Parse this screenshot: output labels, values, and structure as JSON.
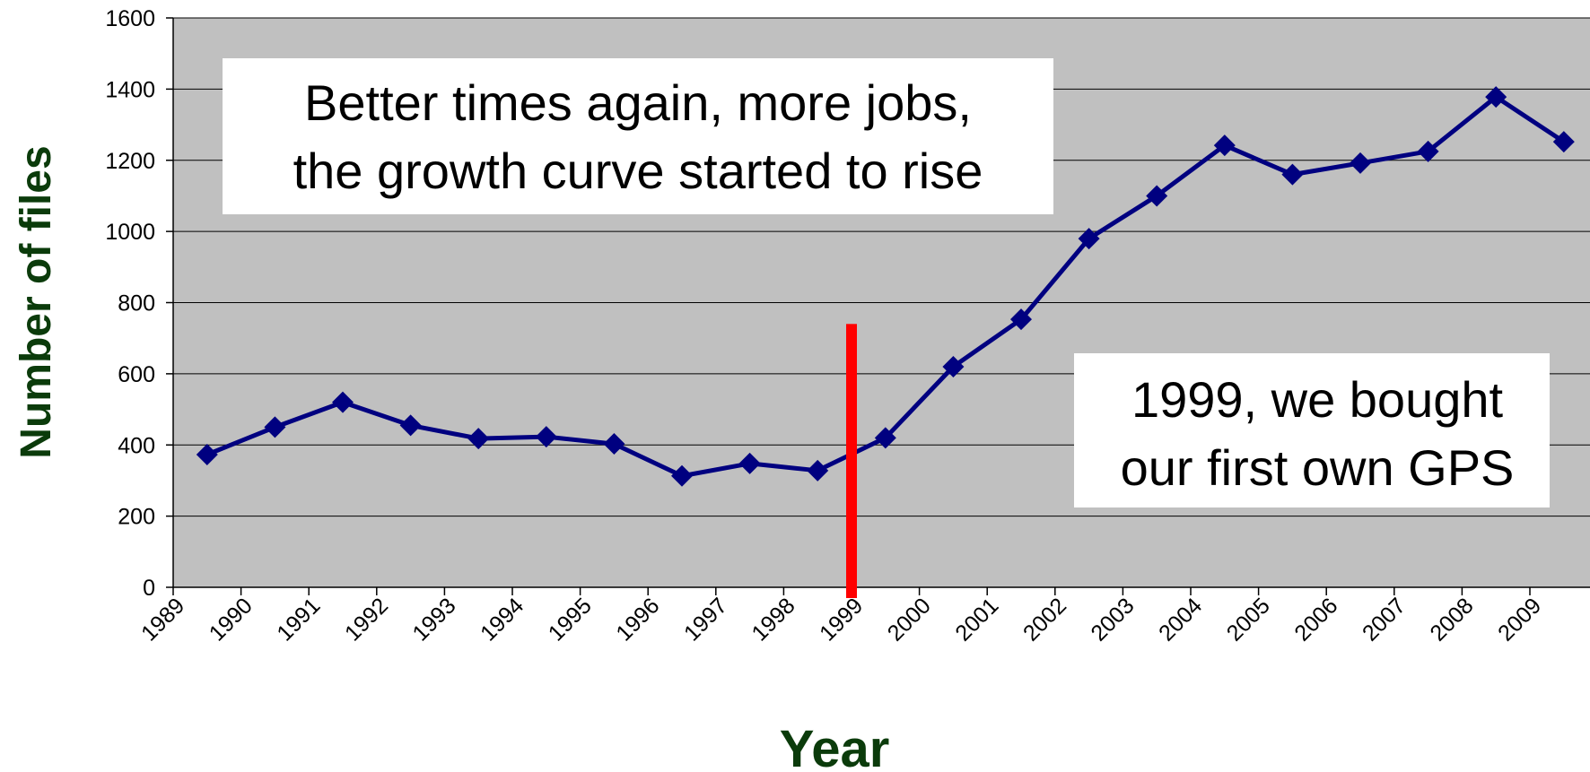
{
  "chart_data": {
    "type": "line",
    "xlabel": "Year",
    "ylabel": "Number of files",
    "x_tick_labels": [
      "1989",
      "1990",
      "1991",
      "1992",
      "1993",
      "1994",
      "1995",
      "1996",
      "1997",
      "1998",
      "1999",
      "2000",
      "2001",
      "2002",
      "2003",
      "2004",
      "2005",
      "2006",
      "2007",
      "2008",
      "2009"
    ],
    "ylim": [
      0,
      1600
    ],
    "y_ticks": [
      0,
      200,
      400,
      600,
      800,
      1000,
      1200,
      1400,
      1600
    ],
    "grid": true,
    "series": [
      {
        "x": [
          1989,
          1990,
          1991,
          1992,
          1993,
          1994,
          1995,
          1996,
          1997,
          1998,
          1999,
          2000,
          2001,
          2002,
          2003,
          2004,
          2005,
          2006,
          2007,
          2008,
          2009
        ],
        "values": [
          373,
          450,
          520,
          455,
          418,
          423,
          403,
          313,
          348,
          328,
          420,
          620,
          753,
          980,
          1100,
          1242,
          1160,
          1192,
          1225,
          1378,
          1252
        ],
        "color": "#000080",
        "marker": "diamond"
      }
    ],
    "marker_line": {
      "x": 1999,
      "y_top": 740,
      "color": "#ff0000"
    },
    "annotations": [
      {
        "id": "growth",
        "lines": [
          "Better times again, more jobs,",
          "the growth curve started to rise"
        ]
      },
      {
        "id": "gps",
        "lines": [
          "1999, we bought",
          "our first own GPS"
        ]
      }
    ],
    "colors": {
      "plot_background": "#c0c0c0",
      "gridline": "#000000",
      "axis_title": "#0b3b0b",
      "annotation_box": "#ffffff"
    }
  }
}
